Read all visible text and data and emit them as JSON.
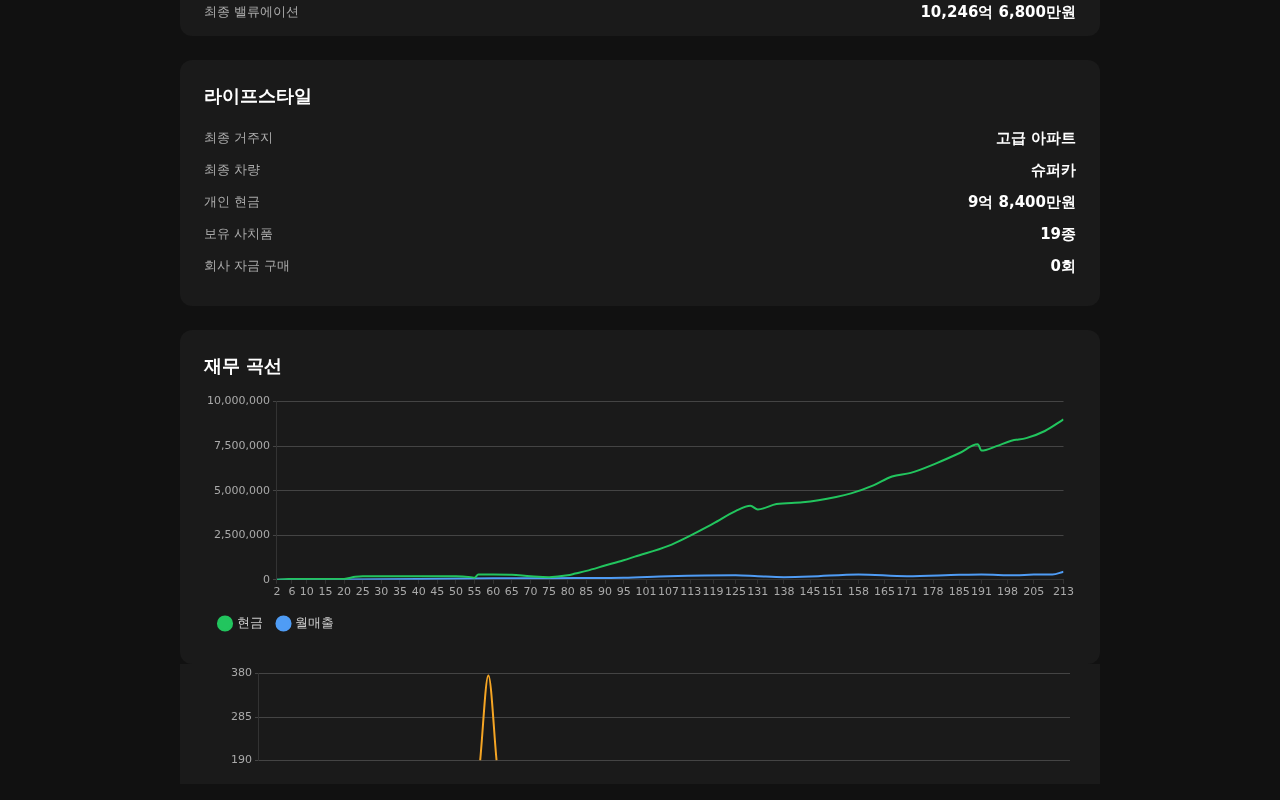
{
  "chart_data": [
    {
      "type": "other",
      "annotations": [
        "최종 밸류에이션",
        "10,246억 6,800만원"
      ]
    },
    {
      "type": "other",
      "title": "라이프스타일",
      "annotations": [
        "최종 거주지",
        "고급 아파트",
        "최종 차량",
        "슈퍼카",
        "개인 현금",
        "9억 8,400만원",
        "보유 사치품",
        "19종",
        "회사 자금 구매",
        "0회"
      ]
    },
    {
      "type": "line",
      "title": "재무 곡선",
      "xlim": [
        2,
        213
      ],
      "xticks": [
        2,
        6,
        10,
        15,
        20,
        25,
        30,
        35,
        40,
        45,
        50,
        55,
        60,
        65,
        70,
        75,
        80,
        85,
        90,
        95,
        101,
        107,
        113,
        119,
        125,
        131,
        138,
        145,
        151,
        158,
        165,
        171,
        178,
        185,
        191,
        198,
        205,
        213
      ],
      "ylim": [
        0,
        10000000
      ],
      "yticks": [
        0,
        {
          "value": 2500000,
          "label": "2,500,000"
        },
        {
          "value": 5000000,
          "label": "5,000,000"
        },
        {
          "value": 7500000,
          "label": "7,500,000"
        },
        {
          "value": 10000000,
          "label": "10,000,000"
        }
      ],
      "grid": "y",
      "legend": "bottom",
      "marker": "none",
      "series": [
        {
          "name": "현금",
          "color": "#22c55e",
          "x": [
            2,
            5,
            20,
            23,
            25,
            40,
            50,
            54,
            55,
            56,
            60,
            65,
            70,
            75,
            80,
            82,
            85,
            90,
            95,
            98,
            107,
            119,
            125,
            129,
            131,
            136,
            143,
            152,
            156,
            162,
            167,
            172,
            179,
            185,
            190,
            191,
            195,
            199,
            203,
            208,
            213
          ],
          "values": [
            0,
            50000,
            50000,
            170000,
            200000,
            200000,
            200000,
            150000,
            120000,
            300000,
            300000,
            280000,
            200000,
            150000,
            250000,
            350000,
            500000,
            800000,
            1100000,
            1300000,
            1900000,
            3150000,
            3850000,
            4150000,
            3950000,
            4250000,
            4350000,
            4650000,
            4850000,
            5300000,
            5800000,
            6000000,
            6550000,
            7100000,
            7600000,
            7250000,
            7500000,
            7800000,
            7950000,
            8350000,
            9000000
          ]
        },
        {
          "name": "월매출",
          "color": "#4f9cf5",
          "x": [
            2,
            20,
            40,
            60,
            70,
            82,
            95,
            107,
            125,
            131,
            138,
            145,
            158,
            171,
            185,
            191,
            200,
            205,
            210,
            213
          ],
          "values": [
            0,
            20000,
            50000,
            80000,
            80000,
            100000,
            120000,
            200000,
            250000,
            200000,
            150000,
            180000,
            300000,
            200000,
            280000,
            300000,
            250000,
            300000,
            300000,
            450000
          ]
        }
      ]
    },
    {
      "type": "line",
      "ylim": [
        190,
        380
      ],
      "yticks": [
        190,
        285,
        380
      ],
      "grid": "y",
      "marker": "none",
      "tick_labels": "y",
      "categories": [
        null,
        null,
        null,
        null,
        null,
        null,
        null,
        null,
        null,
        null,
        null,
        null,
        null,
        null,
        null,
        null,
        null,
        null,
        null,
        null,
        null,
        null,
        null,
        null,
        null,
        null,
        null,
        null,
        null,
        null,
        null,
        null,
        null,
        null,
        null,
        null,
        null,
        null,
        null,
        null,
        null,
        null,
        null,
        null,
        null,
        null,
        null,
        null,
        null,
        null,
        null,
        null,
        null,
        null,
        null,
        null,
        null,
        null,
        null,
        null,
        null,
        null,
        null,
        null,
        null,
        null,
        null,
        null,
        null,
        null,
        null,
        null,
        null,
        null,
        null,
        null,
        null,
        null,
        null,
        null,
        null,
        null,
        null,
        null,
        null,
        null,
        null,
        null,
        null,
        null,
        null,
        null,
        null,
        null,
        null,
        null,
        null,
        null,
        null,
        null
      ],
      "series": [
        {
          "color": "#f5a524",
          "values": [
            null,
            null,
            null,
            null,
            null,
            null,
            null,
            null,
            null,
            null,
            null,
            null,
            null,
            null,
            null,
            null,
            null,
            null,
            null,
            null,
            null,
            null,
            null,
            null,
            null,
            null,
            null,
            190,
            376,
            190,
            null,
            null,
            null,
            null,
            null,
            null,
            null,
            null,
            null,
            null,
            null,
            null,
            null,
            null,
            null,
            null,
            null,
            null,
            null,
            null,
            null,
            null,
            null,
            null,
            null,
            null,
            null,
            null,
            null,
            null,
            null,
            null,
            null,
            null,
            null,
            null,
            null,
            null,
            null,
            null,
            null,
            null,
            null,
            null,
            null,
            null,
            null,
            null,
            null,
            null,
            null,
            null,
            null,
            null,
            null,
            null,
            null,
            null,
            null,
            null,
            null,
            null,
            null,
            null,
            null,
            null,
            null,
            null,
            null,
            null
          ]
        }
      ]
    }
  ]
}
